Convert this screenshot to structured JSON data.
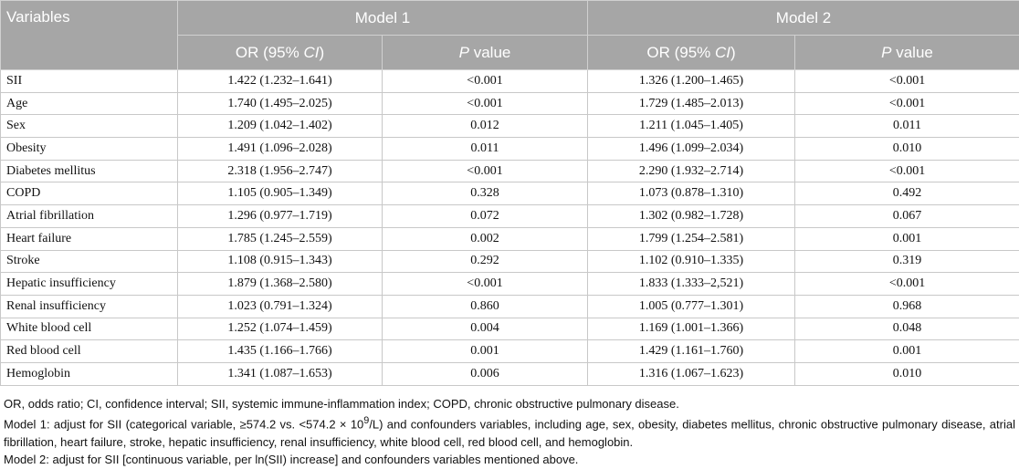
{
  "header": {
    "variables": "Variables",
    "model1": "Model 1",
    "model2": "Model 2",
    "or_label": [
      "OR (95% ",
      "CI",
      ")"
    ],
    "p_label": [
      "P",
      " value"
    ]
  },
  "table": {
    "rows": [
      [
        "SII",
        "1.422 (1.232–1.641)",
        "<0.001",
        "1.326 (1.200–1.465)",
        "<0.001"
      ],
      [
        "Age",
        "1.740 (1.495–2.025)",
        "<0.001",
        "1.729 (1.485–2.013)",
        "<0.001"
      ],
      [
        "Sex",
        "1.209 (1.042–1.402)",
        "0.012",
        "1.211 (1.045–1.405)",
        "0.011"
      ],
      [
        "Obesity",
        "1.491 (1.096–2.028)",
        "0.011",
        "1.496 (1.099–2.034)",
        "0.010"
      ],
      [
        "Diabetes mellitus",
        "2.318 (1.956–2.747)",
        "<0.001",
        "2.290 (1.932–2.714)",
        "<0.001"
      ],
      [
        "COPD",
        "1.105 (0.905–1.349)",
        "0.328",
        "1.073 (0.878–1.310)",
        "0.492"
      ],
      [
        "Atrial fibrillation",
        "1.296 (0.977–1.719)",
        "0.072",
        "1.302 (0.982–1.728)",
        "0.067"
      ],
      [
        "Heart failure",
        "1.785 (1.245–2.559)",
        "0.002",
        "1.799 (1.254–2.581)",
        "0.001"
      ],
      [
        "Stroke",
        "1.108 (0.915–1.343)",
        "0.292",
        "1.102 (0.910–1.335)",
        "0.319"
      ],
      [
        "Hepatic insufficiency",
        "1.879 (1.368–2.580)",
        "<0.001",
        "1.833 (1.333–2,521)",
        "<0.001"
      ],
      [
        "Renal insufficiency",
        "1.023 (0.791–1.324)",
        "0.860",
        "1.005 (0.777–1.301)",
        "0.968"
      ],
      [
        "White blood cell",
        "1.252 (1.074–1.459)",
        "0.004",
        "1.169 (1.001–1.366)",
        "0.048"
      ],
      [
        "Red blood cell",
        "1.435 (1.166–1.766)",
        "0.001",
        "1.429 (1.161–1.760)",
        "0.001"
      ],
      [
        "Hemoglobin",
        "1.341 (1.087–1.653)",
        "0.006",
        "1.316 (1.067–1.623)",
        "0.010"
      ]
    ]
  },
  "footnotes": {
    "abbrev": "OR, odds ratio; CI, confidence interval; SII, systemic immune-inflammation index; COPD, chronic obstructive pulmonary disease.",
    "model1": [
      "Model 1: adjust for SII (categorical variable, ≥574.2 vs. <574.2 × 10",
      "9",
      "/L) and confounders variables, including age, sex, obesity, diabetes mellitus, chronic obstructive pulmonary disease, atrial fibrillation, heart failure, stroke, hepatic insufficiency, renal insufficiency, white blood cell, red blood cell, and hemoglobin."
    ],
    "model2": "Model 2: adjust for SII [continuous variable, per ln(SII) increase] and confounders variables mentioned above."
  }
}
